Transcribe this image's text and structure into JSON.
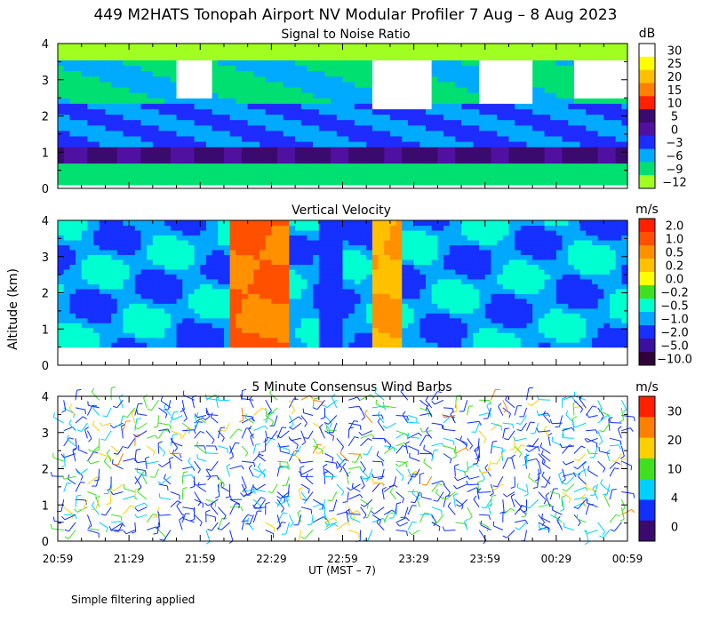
{
  "title": "449 M2HATS Tonopah Airport NV Modular Profiler  7 Aug –  8 Aug 2023",
  "footnote": "Simple filtering applied",
  "chart_data": {
    "type": "heatmap",
    "xlabel": "UT  (MST – 7)",
    "ylabel": "Altitude (km)",
    "x_ticks": [
      "20:59",
      "21:29",
      "21:59",
      "22:29",
      "22:59",
      "23:29",
      "23:59",
      "00:29",
      "00:59"
    ],
    "x_range_minutes": [
      0,
      240
    ],
    "ylim": [
      0,
      4
    ],
    "y_ticks": [
      "0",
      "1",
      "2",
      "3",
      "4"
    ],
    "panels": [
      {
        "title": "Signal to Noise Ratio",
        "type": "heatmap",
        "units": "dB",
        "colorbar_labels": [
          "30",
          "25",
          "20",
          "15",
          "10",
          "5",
          "0",
          "−3",
          "−6",
          "−9",
          "−12"
        ],
        "colors": [
          "#ffffff",
          "#ffff00",
          "#ffbf00",
          "#ff8000",
          "#ff2000",
          "#3a0a6e",
          "#5010a0",
          "#1e2cff",
          "#00aaff",
          "#00e070",
          "#a0ff20"
        ],
        "data_top_km": 4.0,
        "data_bottom_km": 0.1
      },
      {
        "title": "Vertical Velocity",
        "type": "heatmap",
        "units": "m/s",
        "colorbar_labels": [
          "2.0",
          "1.0",
          "0.5",
          "0.2",
          "0.0",
          "−0.2",
          "−0.5",
          "−1.0",
          "−2.0",
          "−5.0",
          "−10.0"
        ],
        "colors": [
          "#ff2000",
          "#ff5000",
          "#ff9000",
          "#ffc000",
          "#ffff00",
          "#40e020",
          "#00ffd0",
          "#00a8ff",
          "#1530ff",
          "#3a10a0",
          "#30003a"
        ],
        "data_top_km": 4.0,
        "data_bottom_km": 0.5
      },
      {
        "title": "5 Minute Consensus Wind Barbs",
        "type": "wind_barbs",
        "units": "m/s",
        "colorbar_labels": [
          "30",
          "20",
          "10",
          "4",
          "0"
        ],
        "colors": [
          "#ff2000",
          "#ff8000",
          "#ffd000",
          "#40e020",
          "#00d0ff",
          "#1030ff",
          "#3a0a6e"
        ],
        "data_top_km": 4.0,
        "data_bottom_km": 0.2
      }
    ]
  }
}
